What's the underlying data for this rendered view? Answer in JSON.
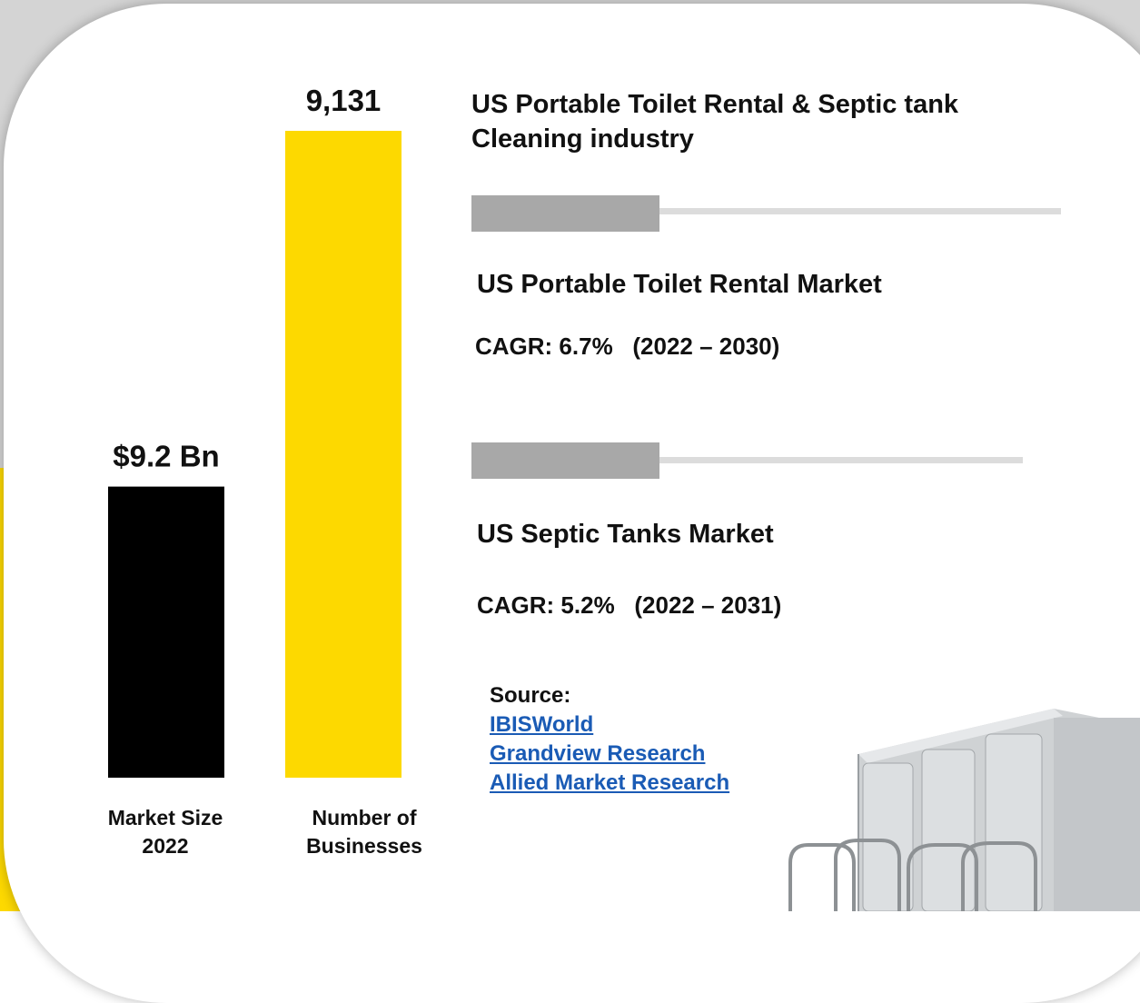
{
  "title": "US Portable Toilet Rental & Septic tank Cleaning industry",
  "chart_data": {
    "type": "bar",
    "categories": [
      "Market Size 2022",
      "Number of Businesses"
    ],
    "values": [
      9.2,
      9131
    ],
    "data_labels": [
      "$9.2 Bn",
      "9,131"
    ],
    "colors": [
      "#000000",
      "#fdd900"
    ]
  },
  "metrics": [
    {
      "name": "US Portable Toilet Rental Market",
      "cagr": "CAGR: 6.7%   (2022 – 2030)"
    },
    {
      "name": "US Septic Tanks Market",
      "cagr": "CAGR: 5.2%   (2022 – 2031)"
    }
  ],
  "source": {
    "label": "Source:",
    "links": [
      "IBISWorld",
      "Grandview Research",
      "Allied Market Research"
    ]
  },
  "colors": {
    "accent": "#fdd900",
    "divider_dark": "#a8a8a8",
    "divider_light": "#dcdcdc",
    "link": "#1a5bb5"
  }
}
